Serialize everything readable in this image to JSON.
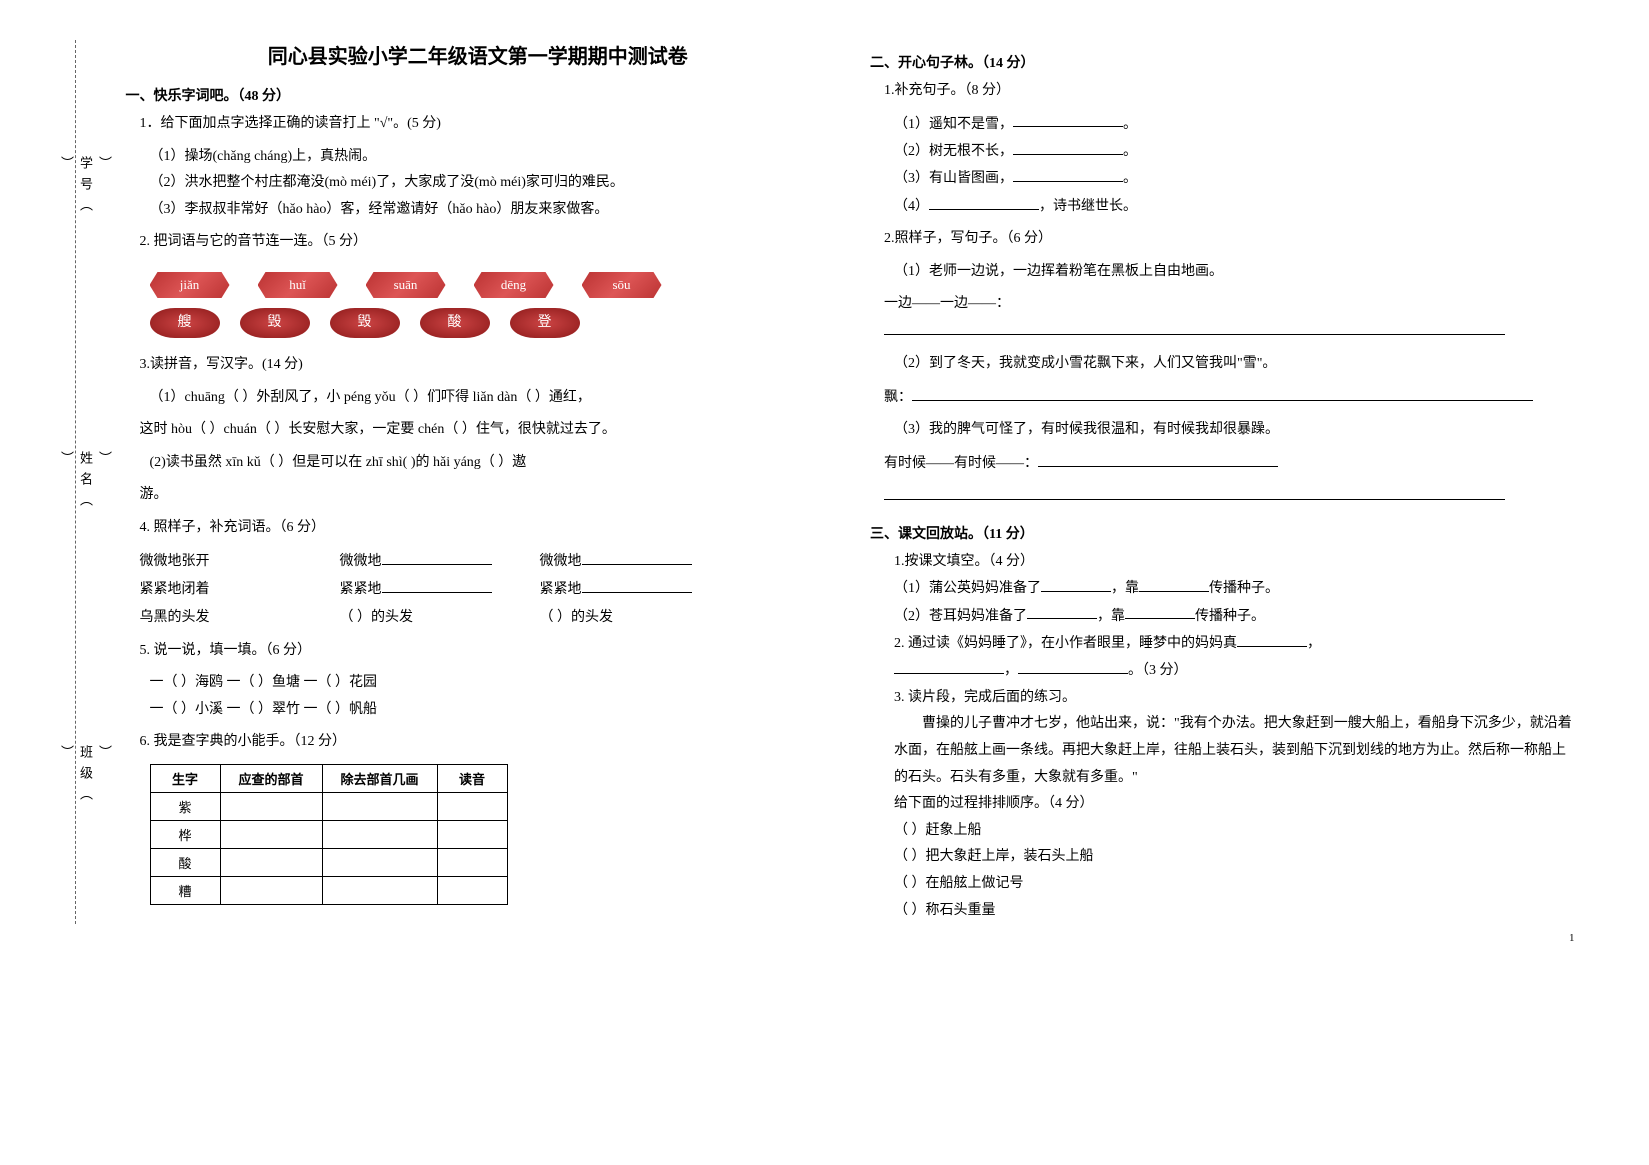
{
  "title": "同心县实验小学二年级语文第一学期期中测试卷",
  "margin": {
    "class": "班级（",
    "name": "姓名（",
    "id": "学号（",
    "paren": "）"
  },
  "left": {
    "s1_head": "一、快乐字词吧。（48 分）",
    "q1": "1．给下面加点字选择正确的读音打上 \"√\"。(5 分)",
    "q1_1": "（1）操场(chǎng  cháng)上，真热闹。",
    "q1_2": "（2）洪水把整个村庄都淹没(mò  méi)了，大家成了没(mò  méi)家可归的难民。",
    "q1_3": "（3）李叔叔非常好（hǎo  hào）客，经常邀请好（hǎo  hào）朋友来家做客。",
    "q2": "2. 把词语与它的音节连一连。（5 分）",
    "tags": [
      "jiǎn",
      "huǐ",
      "suān",
      "dēng",
      "sōu"
    ],
    "tags2": [
      "艘",
      "毁",
      "毁",
      "酸",
      "登"
    ],
    "q3": "3.读拼音，写汉字。(14 分)",
    "q3_1a": "（1）chuāng（      ）外刮风了，小 péng  yǒu（        ）们吓得 liǎn  dàn（       ）通红，",
    "q3_1b": "这时 hòu（     ）chuán（      ）长安慰大家，一定要 chén（     ）住气，很快就过去了。",
    "q3_2": "(2)读书虽然 xīn  kǔ（        ）但是可以在 zhī  shì(           )的 hǎi  yáng（        ）遨",
    "q3_2b": " 游。",
    "q4": "4. 照样子，补充词语。（6 分）",
    "q4_r1_a": "微微地张开",
    "q4_r1_b": "微微地",
    "q4_r1_c": "微微地",
    "q4_r2_a": "紧紧地闭着",
    "q4_r2_b": "紧紧地",
    "q4_r2_c": "紧紧地",
    "q4_r3_a": "乌黑的头发",
    "q4_r3_b": "（         ）的头发",
    "q4_r3_c": "（         ）的头发",
    "q5": "5. 说一说，填一填。（6 分）",
    "q5_1": "一（      ）海鸥      一（      ）鱼塘      一（      ）花园",
    "q5_2": "一（      ）小溪      一（      ）翠竹      一（      ）帆船",
    "q6": "6.  我是查字典的小能手。（12 分）",
    "dict": {
      "headers": [
        "生字",
        "应查的部首",
        "除去部首几画",
        "读音"
      ],
      "rows": [
        "紫",
        "桦",
        "酸",
        "糟"
      ]
    }
  },
  "right": {
    "s2_head": "二、开心句子林。（14 分）",
    "r1": "1.补充句子。（8 分）",
    "r1_1": "（1）遥知不是雪，",
    "r1_1b": "。",
    "r1_2": "（2）树无根不长，",
    "r1_2b": "。",
    "r1_3": "（3）有山皆图画，",
    "r1_3b": "。",
    "r1_4a": "（4）",
    "r1_4b": "，诗书继世长。",
    "r2": "2.照样子，写句子。（6 分）",
    "r2_1": "（1）老师一边说，一边挥着粉笔在黑板上自由地画。",
    "r2_1b": "一边——一边——：",
    "r2_2": "（2）到了冬天，我就变成小雪花飘下来，人们又管我叫\"雪\"。",
    "r2_2b": "飘：",
    "r2_3": "（3）我的脾气可怪了，有时候我很温和，有时候我却很暴躁。",
    "r2_3b": "有时候——有时候——：",
    "s3_head": "三、课文回放站。（11 分）",
    "t1": "1.按课文填空。（4 分）",
    "t1_1a": "（1）蒲公英妈妈准备了",
    "t1_1b": "，靠",
    "t1_1c": "传播种子。",
    "t1_2a": "（2）苍耳妈妈准备了",
    "t1_2b": "，靠",
    "t1_2c": "传播种子。",
    "t2a": "2. 通过读《妈妈睡了》，在小作者眼里，睡梦中的妈妈真",
    "t2b": "，",
    "t2c": "，",
    "t2d": "。（3 分）",
    "t3": "3. 读片段，完成后面的练习。",
    "para": "曹操的儿子曹冲才七岁，他站出来，说：\"我有个办法。把大象赶到一艘大船上，看船身下沉多少，就沿着水面，在船舷上画一条线。再把大象赶上岸，往船上装石头，装到船下沉到划线的地方为止。然后称一称船上的石头。石头有多重，大象就有多重。\"",
    "order_head": "给下面的过程排排顺序。（4 分）",
    "o1": "（    ）赶象上船",
    "o2": "（    ）把大象赶上岸，装石头上船",
    "o3": "（    ）在船舷上做记号",
    "o4": "（    ）称石头重量"
  },
  "page_num": "1",
  "colors": {
    "tag_bg": "#b33333",
    "tag_fg": "#ffffff",
    "text": "#000000",
    "bg": "#ffffff"
  }
}
